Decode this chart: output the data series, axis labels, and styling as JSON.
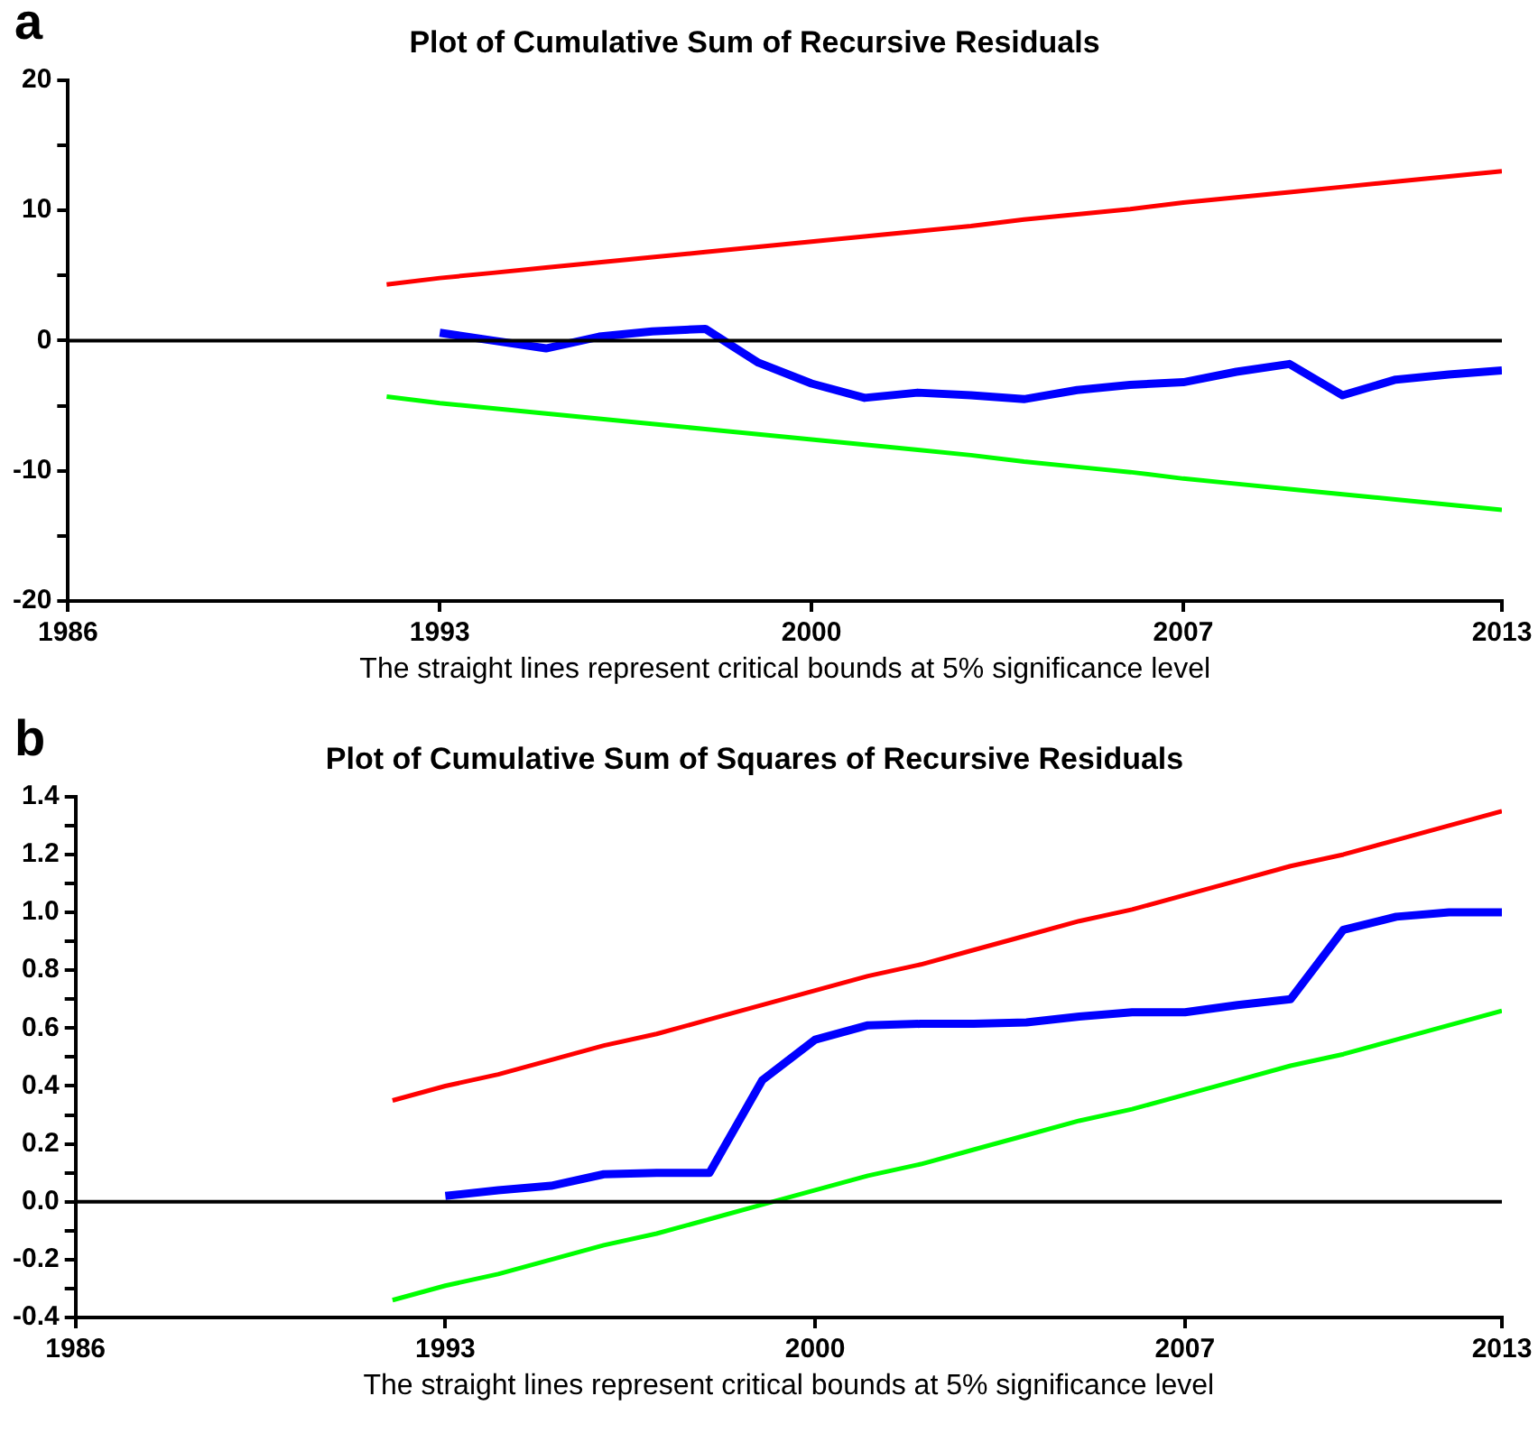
{
  "chart_data": [
    {
      "type": "line",
      "title": "Plot of Cumulative Sum of Recursive Residuals",
      "annotations": [
        "a",
        "The straight lines represent critical bounds at 5% significance level"
      ],
      "xlim": [
        1986,
        2013
      ],
      "xticks": [
        1986,
        1993,
        2000,
        2007,
        2013
      ],
      "ylim": [
        -20,
        20
      ],
      "yticks": [
        -20,
        {
          "value": -15,
          "label": null
        },
        -10,
        {
          "value": -5,
          "label": null
        },
        0,
        {
          "value": 5,
          "label": null
        },
        10,
        {
          "value": 15,
          "label": null
        },
        20
      ],
      "series": [
        {
          "color": "#ff0000",
          "x": [
            1992,
            1993,
            1994,
            1995,
            1996,
            1997,
            1998,
            1999,
            2000,
            2001,
            2002,
            2003,
            2004,
            2005,
            2006,
            2007,
            2008,
            2009,
            2010,
            2011,
            2012,
            2013
          ],
          "values": [
            4.3,
            4.8,
            5.2,
            5.6,
            6.0,
            6.4,
            6.8,
            7.2,
            7.6,
            8.0,
            8.4,
            8.8,
            9.3,
            9.7,
            10.1,
            10.6,
            11.0,
            11.4,
            11.8,
            12.2,
            12.6,
            13.0
          ]
        },
        {
          "color": "#0000ff",
          "x": [
            1993,
            1994,
            1995,
            1996,
            1997,
            1998,
            1999,
            2000,
            2001,
            2002,
            2003,
            2004,
            2005,
            2006,
            2007,
            2008,
            2009,
            2010,
            2011,
            2012,
            2013
          ],
          "values": [
            0.6,
            0.0,
            -0.6,
            0.3,
            0.7,
            0.9,
            -1.7,
            -3.3,
            -4.4,
            -4.0,
            -4.2,
            -4.5,
            -3.8,
            -3.4,
            -3.2,
            -2.4,
            -1.8,
            -4.2,
            -3.0,
            -2.6,
            -2.3
          ]
        },
        {
          "color": "#00ff00",
          "x": [
            1992,
            1993,
            1994,
            1995,
            1996,
            1997,
            1998,
            1999,
            2000,
            2001,
            2002,
            2003,
            2004,
            2005,
            2006,
            2007,
            2008,
            2009,
            2010,
            2011,
            2012,
            2013
          ],
          "values": [
            -4.3,
            -4.8,
            -5.2,
            -5.6,
            -6.0,
            -6.4,
            -6.8,
            -7.2,
            -7.6,
            -8.0,
            -8.4,
            -8.8,
            -9.3,
            -9.7,
            -10.1,
            -10.6,
            -11.0,
            -11.4,
            -11.8,
            -12.2,
            -12.6,
            -13.0
          ]
        }
      ],
      "ref_lines": [
        {
          "axis": "y",
          "value": 0,
          "color": "#000000"
        }
      ],
      "grid": false,
      "legend": false,
      "marker": "none",
      "line_style": "solid"
    },
    {
      "type": "line",
      "title": "Plot of Cumulative Sum of Squares of Recursive Residuals",
      "annotations": [
        "b",
        "The straight lines represent critical bounds at 5% significance level"
      ],
      "xlim": [
        1986,
        2013
      ],
      "xticks": [
        1986,
        1993,
        2000,
        2007,
        2013
      ],
      "ylim": [
        -0.4,
        1.4
      ],
      "yticks": [
        -0.4,
        {
          "value": -0.3,
          "label": null
        },
        -0.2,
        {
          "value": -0.1,
          "label": null
        },
        {
          "value": 0,
          "label": "0.0"
        },
        {
          "value": 0.1,
          "label": null
        },
        0.2,
        {
          "value": 0.3,
          "label": null
        },
        0.4,
        {
          "value": 0.5,
          "label": null
        },
        0.6,
        {
          "value": 0.7,
          "label": null
        },
        0.8,
        {
          "value": 0.9,
          "label": null
        },
        {
          "value": 1,
          "label": "1.0"
        },
        {
          "value": 1.1,
          "label": null
        },
        1.2,
        {
          "value": 1.3,
          "label": null
        },
        1.4
      ],
      "series": [
        {
          "color": "#ff0000",
          "x": [
            1992,
            1993,
            1994,
            1995,
            1996,
            1997,
            1998,
            1999,
            2000,
            2001,
            2002,
            2003,
            2004,
            2005,
            2006,
            2007,
            2008,
            2009,
            2010,
            2011,
            2012,
            2013
          ],
          "values": [
            0.35,
            0.4,
            0.44,
            0.49,
            0.54,
            0.58,
            0.63,
            0.68,
            0.73,
            0.78,
            0.82,
            0.87,
            0.92,
            0.97,
            1.01,
            1.06,
            1.11,
            1.16,
            1.2,
            1.25,
            1.3,
            1.35
          ]
        },
        {
          "color": "#0000ff",
          "x": [
            1993,
            1994,
            1995,
            1996,
            1997,
            1998,
            1999,
            2000,
            2001,
            2002,
            2003,
            2004,
            2005,
            2006,
            2007,
            2008,
            2009,
            2010,
            2011,
            2012,
            2013
          ],
          "values": [
            0.02,
            0.04,
            0.055,
            0.095,
            0.1,
            0.1,
            0.42,
            0.56,
            0.61,
            0.615,
            0.615,
            0.62,
            0.64,
            0.655,
            0.655,
            0.68,
            0.7,
            0.94,
            0.985,
            1.0,
            1.0
          ]
        },
        {
          "color": "#00ff00",
          "x": [
            1992,
            1993,
            1994,
            1995,
            1996,
            1997,
            1998,
            1999,
            2000,
            2001,
            2002,
            2003,
            2004,
            2005,
            2006,
            2007,
            2008,
            2009,
            2010,
            2011,
            2012,
            2013
          ],
          "values": [
            -0.34,
            -0.29,
            -0.25,
            -0.2,
            -0.15,
            -0.11,
            -0.06,
            -0.01,
            0.04,
            0.09,
            0.13,
            0.18,
            0.23,
            0.28,
            0.32,
            0.37,
            0.42,
            0.47,
            0.51,
            0.56,
            0.61,
            0.66
          ]
        }
      ],
      "ref_lines": [
        {
          "axis": "y",
          "value": 0,
          "color": "#000000"
        }
      ],
      "grid": false,
      "legend": false,
      "marker": "none",
      "line_style": "solid"
    }
  ]
}
